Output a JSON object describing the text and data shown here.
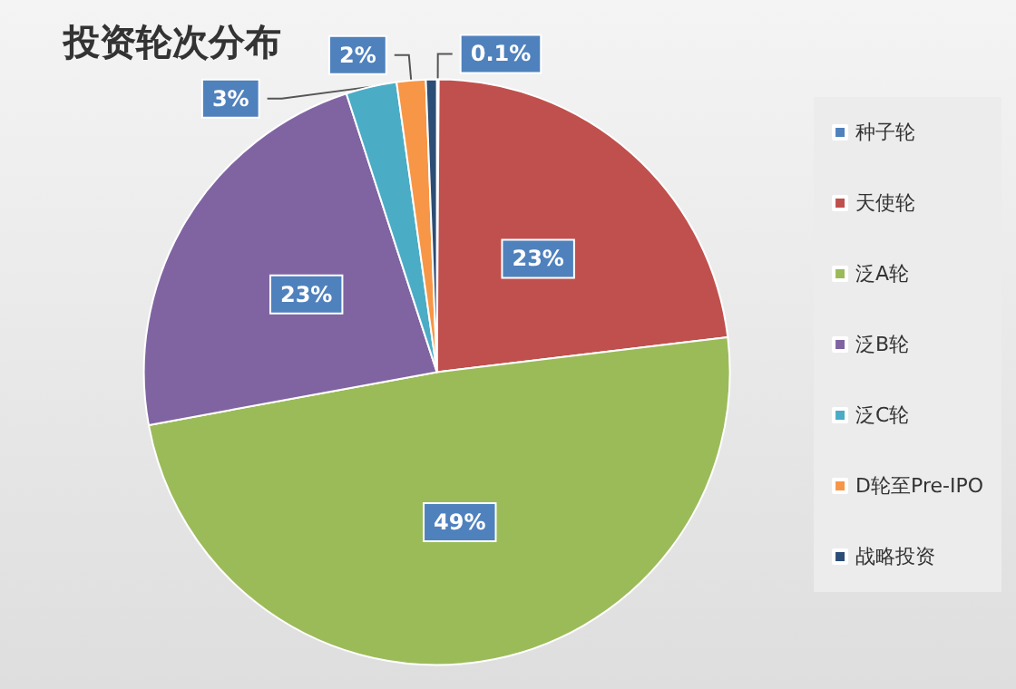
{
  "chart_data": {
    "type": "pie",
    "title": "投资轮次分布",
    "categories": [
      "种子轮",
      "天使轮",
      "泛A轮",
      "泛B轮",
      "泛C轮",
      "D轮至Pre-IPO",
      "战略投资"
    ],
    "values": [
      0.1,
      23,
      49,
      22.9,
      2.8,
      1.6,
      0.6
    ],
    "value_labels": [
      "0.1%",
      "23%",
      "49%",
      "23%",
      "3%",
      "2%",
      null
    ],
    "colors": [
      "#4f81bd",
      "#c0504d",
      "#9bbb59",
      "#8064a2",
      "#4bacc6",
      "#f79646",
      "#2c4d75"
    ],
    "legend": "right"
  }
}
